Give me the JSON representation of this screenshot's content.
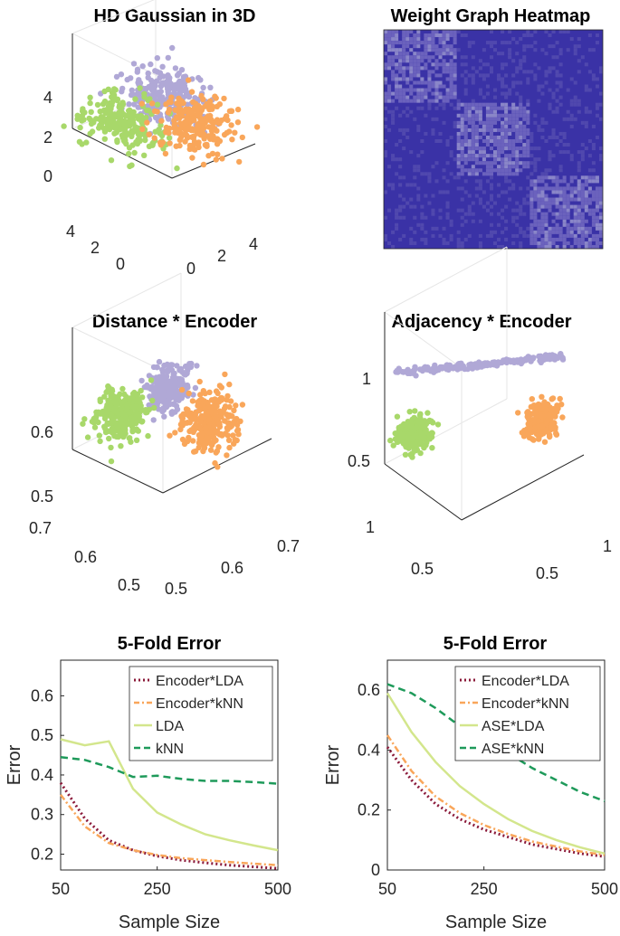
{
  "colors": {
    "purple": "#b0a8d6",
    "green": "#a8d86a",
    "orange": "#f9a65a",
    "heat_bg": "#3a32a6",
    "heat_block": "#5a4fb0",
    "dark_red": "#8b1a3a",
    "light_green": "#d3e68c",
    "dark_green": "#1e9a5a"
  },
  "chart_data": [
    {
      "type": "scatter",
      "title": "HD Gaussian in 3D",
      "projection": "3d",
      "ticks": {
        "z": [
          "0",
          "2",
          "4"
        ],
        "y": [
          "0",
          "2",
          "4"
        ],
        "x": [
          "0",
          "2",
          "4"
        ]
      },
      "series": [
        {
          "color": "purple",
          "center": [
            1.5,
            1.5,
            2.5
          ],
          "spread": 0.9,
          "count": 230
        },
        {
          "color": "green",
          "center": [
            0.2,
            3.0,
            0.6
          ],
          "spread": 0.9,
          "count": 230
        },
        {
          "color": "orange",
          "center": [
            3.0,
            1.2,
            0.4
          ],
          "spread": 0.9,
          "count": 230
        }
      ]
    },
    {
      "type": "heatmap",
      "title": "Weight Graph Heatmap",
      "blocks": 3,
      "size": 300
    },
    {
      "type": "scatter",
      "title": "Distance * Encoder",
      "projection": "3d",
      "ticks": {
        "z": [
          "0.5",
          "0.6"
        ],
        "y": [
          "0.5",
          "0.6",
          "0.7"
        ],
        "x": [
          "0.5",
          "0.6",
          "0.7"
        ]
      },
      "series": [
        {
          "color": "purple",
          "center": [
            0.56,
            0.56,
            0.58
          ],
          "spread": 0.018,
          "count": 250
        },
        {
          "color": "green",
          "center": [
            0.5,
            0.62,
            0.55
          ],
          "spread": 0.022,
          "count": 250
        },
        {
          "color": "orange",
          "center": [
            0.62,
            0.52,
            0.53
          ],
          "spread": 0.025,
          "count": 250
        }
      ]
    },
    {
      "type": "scatter",
      "title": "Adjacency * Encoder",
      "projection": "3d",
      "ticks": {
        "z": [
          "0.5",
          "1"
        ],
        "y": [
          "0.5",
          "1"
        ],
        "x": [
          "0.5",
          "1"
        ]
      },
      "series": [
        {
          "color": "purple",
          "center": [
            0.6,
            0.65,
            0.72
          ],
          "spread": 0.05,
          "count": 200
        },
        {
          "color": "green",
          "center": [
            0.3,
            0.85,
            0.45
          ],
          "spread": 0.045,
          "count": 250
        },
        {
          "color": "orange",
          "center": [
            0.85,
            0.4,
            0.45
          ],
          "spread": 0.045,
          "count": 250
        }
      ]
    },
    {
      "type": "line",
      "title": "5-Fold Error",
      "xlabel": "Sample Size",
      "ylabel": "Error",
      "x": [
        50,
        100,
        150,
        200,
        250,
        300,
        350,
        400,
        450,
        500
      ],
      "xticks": [
        50,
        250,
        500
      ],
      "yticks": [
        0.2,
        0.3,
        0.4,
        0.5,
        0.6
      ],
      "ylim": [
        0.16,
        0.69
      ],
      "legend": "top-right",
      "series": [
        {
          "name": "Encoder*LDA",
          "style": "dotted",
          "color": "dark_red",
          "values": [
            0.38,
            0.29,
            0.235,
            0.21,
            0.195,
            0.185,
            0.178,
            0.172,
            0.168,
            0.164
          ]
        },
        {
          "name": "Encoder*kNN",
          "style": "dashdot",
          "color": "orange",
          "values": [
            0.35,
            0.27,
            0.228,
            0.21,
            0.198,
            0.19,
            0.185,
            0.18,
            0.176,
            0.172
          ]
        },
        {
          "name": "LDA",
          "style": "solid",
          "color": "light_green",
          "values": [
            0.49,
            0.475,
            0.485,
            0.365,
            0.305,
            0.275,
            0.25,
            0.235,
            0.222,
            0.21
          ]
        },
        {
          "name": "kNN",
          "style": "dashed",
          "color": "dark_green",
          "values": [
            0.445,
            0.438,
            0.42,
            0.395,
            0.398,
            0.39,
            0.385,
            0.385,
            0.382,
            0.378
          ]
        }
      ]
    },
    {
      "type": "line",
      "title": "5-Fold Error",
      "xlabel": "Sample Size",
      "ylabel": "Error",
      "x": [
        50,
        100,
        150,
        200,
        250,
        300,
        350,
        400,
        450,
        500
      ],
      "xticks": [
        50,
        250,
        500
      ],
      "yticks": [
        0,
        0.2,
        0.4,
        0.6
      ],
      "ylim": [
        0,
        0.7
      ],
      "legend": "top-right",
      "series": [
        {
          "name": "Encoder*LDA",
          "style": "dotted",
          "color": "dark_red",
          "values": [
            0.41,
            0.3,
            0.22,
            0.17,
            0.135,
            0.11,
            0.085,
            0.07,
            0.055,
            0.045
          ]
        },
        {
          "name": "Encoder*kNN",
          "style": "dashdot",
          "color": "orange",
          "values": [
            0.45,
            0.33,
            0.245,
            0.19,
            0.15,
            0.12,
            0.095,
            0.078,
            0.062,
            0.05
          ]
        },
        {
          "name": "ASE*LDA",
          "style": "solid",
          "color": "light_green",
          "values": [
            0.59,
            0.46,
            0.36,
            0.28,
            0.22,
            0.17,
            0.13,
            0.1,
            0.075,
            0.055
          ]
        },
        {
          "name": "ASE*kNN",
          "style": "dashed",
          "color": "dark_green",
          "values": [
            0.62,
            0.59,
            0.54,
            0.48,
            0.43,
            0.39,
            0.34,
            0.3,
            0.26,
            0.23
          ]
        }
      ]
    }
  ]
}
